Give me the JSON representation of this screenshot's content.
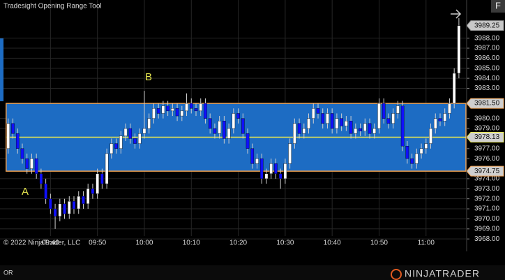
{
  "chart_data": {
    "type": "candlestick",
    "title": "Tradesight Opening Range Tool",
    "copyright": "© 2022 NinjaTrader, LLC",
    "tab": "OR",
    "button": "F",
    "logo": "NINJATRADER",
    "annotations": [
      "A",
      "B"
    ],
    "up_color": "#ffffff",
    "down_color": "#1010ff",
    "open": [
      3977.0,
      3979.5,
      3978.5,
      3977.0,
      3976.0,
      3975.0,
      3976.0,
      3974.5,
      3973.5,
      3972.0,
      3971.0,
      3970.25,
      3971.5,
      3970.5,
      3971.75,
      3971.0,
      3972.25,
      3971.5,
      3973.0,
      3972.5,
      3974.5,
      3973.5,
      3976.5,
      3977.5,
      3977.0,
      3978.25,
      3979.0,
      3978.0,
      3977.5,
      3978.5,
      3979.0,
      3980.0,
      3981.0,
      3980.5,
      3981.25,
      3980.75,
      3981.0,
      3980.25,
      3980.75,
      3981.5,
      3981.0,
      3980.75,
      3981.5,
      3980.0,
      3979.0,
      3978.5,
      3979.75,
      3978.0,
      3979.0,
      3980.5,
      3980.0,
      3978.5,
      3977.0,
      3975.5,
      3976.0,
      3974.0,
      3974.5,
      3975.5,
      3974.5,
      3974.0,
      3975.5,
      3977.5,
      3979.5,
      3978.5,
      3979.0,
      3980.0,
      3981.0,
      3980.5,
      3979.5,
      3980.5,
      3979.0,
      3980.0,
      3979.25,
      3979.75,
      3978.5,
      3979.0,
      3978.75,
      3979.5,
      3978.5,
      3979.0,
      3981.5,
      3980.0,
      3979.5,
      3980.5,
      3981.25,
      3977.25,
      3976.0,
      3975.5,
      3976.5,
      3977.0,
      3977.5,
      3979.0,
      3980.0,
      3979.75,
      3980.5,
      3981.5,
      3984.5
    ],
    "high": [
      3980.0,
      3980.0,
      3979.0,
      3977.5,
      3976.5,
      3976.5,
      3976.5,
      3975.0,
      3974.0,
      3972.5,
      3971.5,
      3972.0,
      3972.0,
      3972.25,
      3972.25,
      3972.75,
      3972.75,
      3973.5,
      3973.5,
      3975.0,
      3975.0,
      3977.0,
      3978.0,
      3978.0,
      3978.75,
      3979.5,
      3979.5,
      3978.5,
      3979.0,
      3982.75,
      3980.5,
      3981.5,
      3981.5,
      3981.75,
      3981.75,
      3981.5,
      3981.5,
      3981.25,
      3982.5,
      3982.0,
      3981.5,
      3982.0,
      3982.0,
      3980.5,
      3979.5,
      3980.25,
      3980.25,
      3979.5,
      3981.0,
      3981.0,
      3980.5,
      3979.0,
      3977.5,
      3976.5,
      3976.5,
      3975.0,
      3976.0,
      3976.0,
      3975.0,
      3976.0,
      3978.0,
      3980.0,
      3980.0,
      3979.5,
      3980.5,
      3981.5,
      3981.5,
      3981.0,
      3981.0,
      3981.0,
      3980.5,
      3980.5,
      3980.25,
      3980.25,
      3979.5,
      3979.5,
      3980.0,
      3980.0,
      3979.5,
      3982.0,
      3982.0,
      3980.5,
      3981.0,
      3981.75,
      3981.75,
      3977.75,
      3976.5,
      3977.0,
      3977.5,
      3978.0,
      3979.5,
      3980.5,
      3980.5,
      3981.0,
      3982.0,
      3985.0,
      3990.0
    ],
    "low": [
      3976.5,
      3978.0,
      3976.5,
      3975.5,
      3974.5,
      3974.5,
      3974.0,
      3973.0,
      3971.5,
      3970.5,
      3969.0,
      3969.75,
      3970.0,
      3970.0,
      3970.5,
      3970.5,
      3971.0,
      3971.0,
      3972.0,
      3972.0,
      3973.0,
      3973.0,
      3976.0,
      3976.5,
      3976.5,
      3977.75,
      3977.5,
      3977.0,
      3977.0,
      3978.0,
      3978.5,
      3979.5,
      3980.0,
      3980.0,
      3980.25,
      3980.25,
      3979.75,
      3979.75,
      3980.25,
      3980.5,
      3980.25,
      3980.25,
      3979.5,
      3978.5,
      3978.0,
      3978.0,
      3977.5,
      3977.5,
      3978.5,
      3979.5,
      3978.0,
      3976.5,
      3975.0,
      3975.0,
      3973.5,
      3973.5,
      3974.0,
      3974.0,
      3973.0,
      3973.5,
      3975.0,
      3977.0,
      3978.0,
      3978.0,
      3978.5,
      3979.5,
      3980.0,
      3979.0,
      3979.0,
      3978.5,
      3978.5,
      3978.75,
      3978.75,
      3978.0,
      3978.0,
      3978.25,
      3978.25,
      3978.0,
      3978.0,
      3978.5,
      3979.5,
      3979.0,
      3979.0,
      3980.0,
      3976.75,
      3975.5,
      3975.0,
      3975.0,
      3976.0,
      3976.5,
      3977.0,
      3978.5,
      3979.25,
      3979.25,
      3980.0,
      3981.0,
      3984.0
    ],
    "close": [
      3979.5,
      3978.5,
      3977.0,
      3976.0,
      3975.0,
      3976.0,
      3974.5,
      3973.5,
      3972.0,
      3971.0,
      3970.25,
      3971.5,
      3970.5,
      3971.75,
      3971.0,
      3972.25,
      3971.5,
      3973.0,
      3972.5,
      3974.5,
      3973.5,
      3976.5,
      3977.5,
      3977.0,
      3978.25,
      3979.0,
      3978.0,
      3977.5,
      3978.5,
      3979.0,
      3980.0,
      3981.0,
      3980.5,
      3981.25,
      3980.75,
      3981.0,
      3980.25,
      3980.75,
      3981.5,
      3981.0,
      3980.75,
      3981.5,
      3980.0,
      3979.0,
      3978.5,
      3979.75,
      3978.0,
      3979.0,
      3980.5,
      3980.0,
      3978.5,
      3977.0,
      3975.5,
      3976.0,
      3974.0,
      3974.5,
      3975.5,
      3974.5,
      3974.0,
      3975.5,
      3977.5,
      3979.5,
      3978.5,
      3979.0,
      3980.0,
      3981.0,
      3980.5,
      3979.5,
      3980.5,
      3979.0,
      3980.0,
      3979.25,
      3979.75,
      3978.5,
      3979.0,
      3978.75,
      3979.5,
      3978.5,
      3979.0,
      3981.5,
      3980.0,
      3979.5,
      3980.5,
      3981.25,
      3977.25,
      3976.0,
      3975.5,
      3976.5,
      3977.0,
      3977.5,
      3979.0,
      3980.0,
      3979.75,
      3980.5,
      3981.5,
      3984.5,
      3989.25
    ],
    "last_price": 3989.25,
    "opening_range": {
      "high": {
        "value": 3981.5,
        "label": "3981.50"
      },
      "mid": 3978.13,
      "low": 3974.75,
      "color": "#f0a050",
      "fill": "#1d6cc3",
      "mid_color": "#e8e850"
    },
    "xlim": [
      -1.75,
      97.5
    ],
    "xticks": [
      {
        "value": 9,
        "label": "09:40"
      },
      {
        "value": 19,
        "label": "09:50"
      },
      {
        "value": 29,
        "label": "10:00"
      },
      {
        "value": 39,
        "label": "10:10"
      },
      {
        "value": 49,
        "label": "10:20"
      },
      {
        "value": 59,
        "label": "10:30"
      },
      {
        "value": 69,
        "label": "10:40"
      },
      {
        "value": 79,
        "label": "10:50"
      },
      {
        "value": 89,
        "label": "11:00"
      }
    ],
    "ylim": [
      3966.9,
      3991.8
    ],
    "yticks": [
      {
        "value": 3968,
        "label": "3968.00"
      },
      {
        "value": 3969,
        "label": "3969.00"
      },
      {
        "value": 3970,
        "label": "3970.00"
      },
      {
        "value": 3971,
        "label": "3971.00"
      },
      {
        "value": 3972,
        "label": "3972.00"
      },
      {
        "value": 3973,
        "label": "3973.00"
      },
      {
        "value": 3974,
        "label": "3974.00"
      },
      {
        "value": 3976,
        "label": "3976.00"
      },
      {
        "value": 3977,
        "label": "3977.00"
      },
      {
        "value": 3979,
        "label": "3979.00"
      },
      {
        "value": 3980,
        "label": "3980.00"
      },
      {
        "value": 3983,
        "label": "3983.00"
      },
      {
        "value": 3984,
        "label": "3984.00"
      },
      {
        "value": 3985,
        "label": "3985.00"
      },
      {
        "value": 3986,
        "label": "3986.00"
      },
      {
        "value": 3987,
        "label": "3987.00"
      },
      {
        "value": 3988,
        "label": "3988.00"
      }
    ],
    "grid": true
  }
}
